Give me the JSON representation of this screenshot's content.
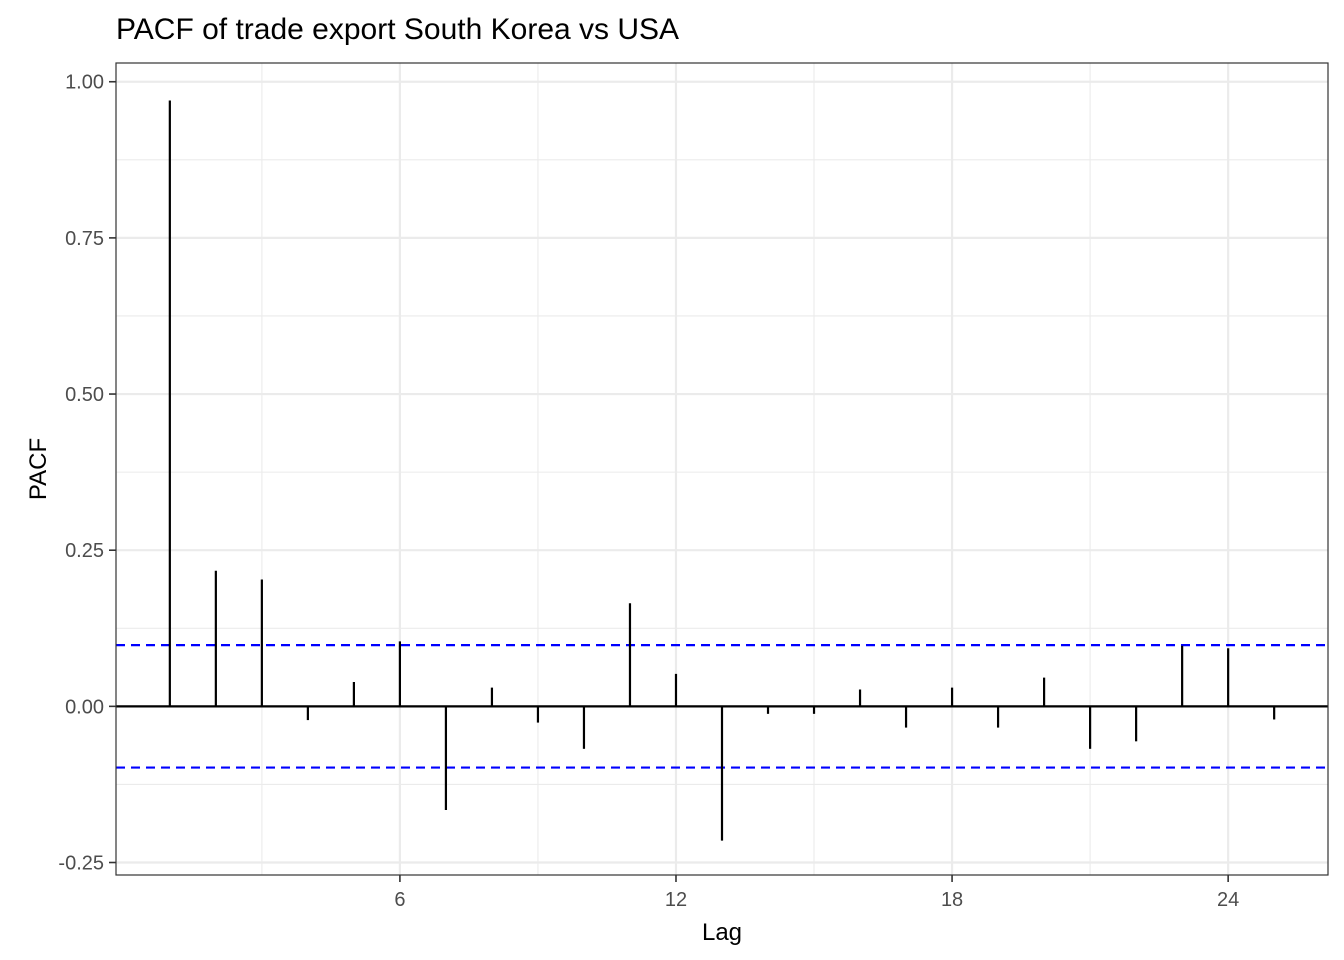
{
  "chart_data": {
    "type": "bar",
    "title": "PACF of trade export South Korea vs USA",
    "xlabel": "Lag",
    "ylabel": "PACF",
    "x": [
      1,
      2,
      3,
      4,
      5,
      6,
      7,
      8,
      9,
      10,
      11,
      12,
      13,
      14,
      15,
      16,
      17,
      18,
      19,
      20,
      21,
      22,
      23,
      24,
      25
    ],
    "values": [
      0.97,
      0.217,
      0.203,
      -0.022,
      0.039,
      0.104,
      -0.166,
      0.03,
      -0.026,
      -0.068,
      0.165,
      0.052,
      -0.215,
      -0.012,
      -0.012,
      0.027,
      -0.034,
      0.03,
      -0.034,
      0.046,
      -0.068,
      -0.056,
      0.097,
      0.093,
      -0.021
    ],
    "confidence_limit": 0.098,
    "xlim": [
      -0.17,
      26.17
    ],
    "ylim": [
      -0.27,
      1.03
    ],
    "x_ticks": [
      6,
      12,
      18,
      24
    ],
    "x_tick_labels": [
      "6",
      "12",
      "18",
      "24"
    ],
    "y_ticks": [
      -0.25,
      0,
      0.25,
      0.5,
      0.75,
      1.0
    ],
    "y_tick_labels": [
      "-0.25",
      "0.00",
      "0.25",
      "0.50",
      "0.75",
      "1.00"
    ],
    "grid": true,
    "colors": {
      "bars": "#000000",
      "confidence": "#0000ff",
      "grid": "#ebebeb"
    }
  }
}
